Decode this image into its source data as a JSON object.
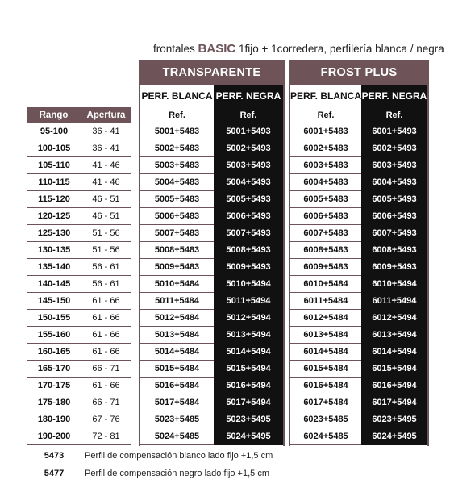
{
  "title": {
    "prefix": "frontales ",
    "brand": "BASIC",
    "suffix": " 1fijo + 1corredera, perfilería blanca / negra"
  },
  "groups": [
    {
      "label": "TRANSPARENTE",
      "cols": [
        "PERF. BLANCA",
        "PERF. NEGRA"
      ]
    },
    {
      "label": "FROST PLUS",
      "cols": [
        "PERF. BLANCA",
        "PERF. NEGRA"
      ]
    }
  ],
  "left_headers": {
    "rango": "Rango",
    "apertura": "Apertura"
  },
  "ref_label": "Ref.",
  "rows": [
    {
      "rango": "95-100",
      "apertura": "36 - 41",
      "t_blanca": "5001+5483",
      "t_negra": "5001+5493",
      "f_blanca": "6001+5483",
      "f_negra": "6001+5493"
    },
    {
      "rango": "100-105",
      "apertura": "36 - 41",
      "t_blanca": "5002+5483",
      "t_negra": "5002+5493",
      "f_blanca": "6002+5483",
      "f_negra": "6002+5493"
    },
    {
      "rango": "105-110",
      "apertura": "41 - 46",
      "t_blanca": "5003+5483",
      "t_negra": "5003+5493",
      "f_blanca": "6003+5483",
      "f_negra": "6003+5493"
    },
    {
      "rango": "110-115",
      "apertura": "41 - 46",
      "t_blanca": "5004+5483",
      "t_negra": "5004+5493",
      "f_blanca": "6004+5483",
      "f_negra": "6004+5493"
    },
    {
      "rango": "115-120",
      "apertura": "46 - 51",
      "t_blanca": "5005+5483",
      "t_negra": "5005+5493",
      "f_blanca": "6005+5483",
      "f_negra": "6005+5493"
    },
    {
      "rango": "120-125",
      "apertura": "46 - 51",
      "t_blanca": "5006+5483",
      "t_negra": "5006+5493",
      "f_blanca": "6006+5483",
      "f_negra": "6006+5493"
    },
    {
      "rango": "125-130",
      "apertura": "51 - 56",
      "t_blanca": "5007+5483",
      "t_negra": "5007+5493",
      "f_blanca": "6007+5483",
      "f_negra": "6007+5493"
    },
    {
      "rango": "130-135",
      "apertura": "51 - 56",
      "t_blanca": "5008+5483",
      "t_negra": "5008+5493",
      "f_blanca": "6008+5483",
      "f_negra": "6008+5493"
    },
    {
      "rango": "135-140",
      "apertura": "56 - 61",
      "t_blanca": "5009+5483",
      "t_negra": "5009+5493",
      "f_blanca": "6009+5483",
      "f_negra": "6009+5493"
    },
    {
      "rango": "140-145",
      "apertura": "56 - 61",
      "t_blanca": "5010+5484",
      "t_negra": "5010+5494",
      "f_blanca": "6010+5484",
      "f_negra": "6010+5494"
    },
    {
      "rango": "145-150",
      "apertura": "61 - 66",
      "t_blanca": "5011+5484",
      "t_negra": "5011+5494",
      "f_blanca": "6011+5484",
      "f_negra": "6011+5494"
    },
    {
      "rango": "150-155",
      "apertura": "61 - 66",
      "t_blanca": "5012+5484",
      "t_negra": "5012+5494",
      "f_blanca": "6012+5484",
      "f_negra": "6012+5494"
    },
    {
      "rango": "155-160",
      "apertura": "61 - 66",
      "t_blanca": "5013+5484",
      "t_negra": "5013+5494",
      "f_blanca": "6013+5484",
      "f_negra": "6013+5494"
    },
    {
      "rango": "160-165",
      "apertura": "61 - 66",
      "t_blanca": "5014+5484",
      "t_negra": "5014+5494",
      "f_blanca": "6014+5484",
      "f_negra": "6014+5494"
    },
    {
      "rango": "165-170",
      "apertura": "66 - 71",
      "t_blanca": "5015+5484",
      "t_negra": "5015+5494",
      "f_blanca": "6015+5484",
      "f_negra": "6015+5494"
    },
    {
      "rango": "170-175",
      "apertura": "61 - 66",
      "t_blanca": "5016+5484",
      "t_negra": "5016+5494",
      "f_blanca": "6016+5484",
      "f_negra": "6016+5494"
    },
    {
      "rango": "175-180",
      "apertura": "66 - 71",
      "t_blanca": "5017+5484",
      "t_negra": "5017+5494",
      "f_blanca": "6017+5484",
      "f_negra": "6017+5494"
    },
    {
      "rango": "180-190",
      "apertura": "67 - 76",
      "t_blanca": "5023+5485",
      "t_negra": "5023+5495",
      "f_blanca": "6023+5485",
      "f_negra": "6023+5495"
    },
    {
      "rango": "190-200",
      "apertura": "72 - 81",
      "t_blanca": "5024+5485",
      "t_negra": "5024+5495",
      "f_blanca": "6024+5485",
      "f_negra": "6024+5495"
    }
  ],
  "notes": [
    {
      "code": "5473",
      "text": "Perfil de compensación blanco lado fijo +1,5 cm"
    },
    {
      "code": "5477",
      "text": "Perfil de compensación negro lado fijo +1,5 cm"
    }
  ],
  "colors": {
    "accent": "#6e5358",
    "black": "#111111"
  }
}
